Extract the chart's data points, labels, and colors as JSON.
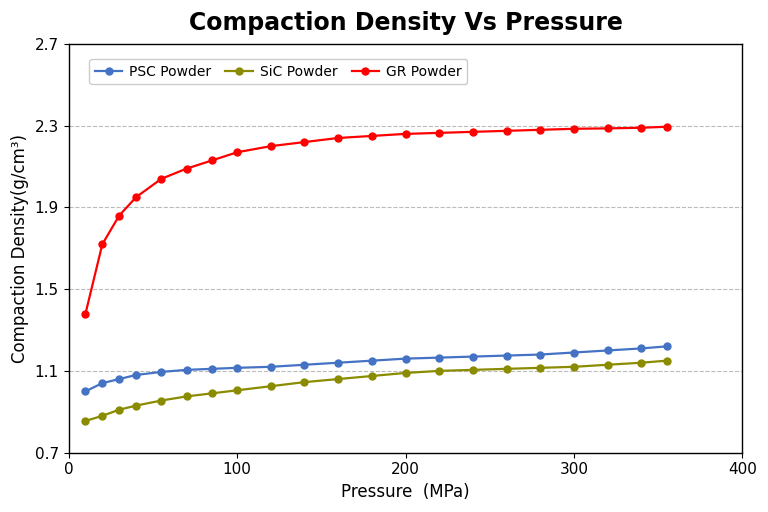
{
  "title": "Compaction Density Vs Pressure",
  "xlabel": "Pressure  (MPa)",
  "ylabel": "Compaction Density(g/cm³)",
  "xlim": [
    0,
    375
  ],
  "ylim": [
    0.7,
    2.7
  ],
  "xticks": [
    0,
    100,
    200,
    300,
    400
  ],
  "yticks": [
    0.7,
    1.1,
    1.5,
    1.9,
    2.3,
    2.7
  ],
  "grid_yticks": [
    1.1,
    1.5,
    1.9,
    2.3
  ],
  "PSC_Powder": {
    "label": "PSC Powder",
    "color": "#4472C4",
    "marker": "o",
    "x": [
      10,
      20,
      30,
      40,
      55,
      70,
      85,
      100,
      120,
      140,
      160,
      180,
      200,
      220,
      240,
      260,
      280,
      300,
      320,
      340,
      355
    ],
    "y": [
      1.0,
      1.04,
      1.06,
      1.08,
      1.095,
      1.105,
      1.11,
      1.115,
      1.12,
      1.13,
      1.14,
      1.15,
      1.16,
      1.165,
      1.17,
      1.175,
      1.18,
      1.19,
      1.2,
      1.21,
      1.22
    ]
  },
  "SiC_Powder": {
    "label": "SiC Powder",
    "color": "#8B8B00",
    "marker": "o",
    "x": [
      10,
      20,
      30,
      40,
      55,
      70,
      85,
      100,
      120,
      140,
      160,
      180,
      200,
      220,
      240,
      260,
      280,
      300,
      320,
      340,
      355
    ],
    "y": [
      0.855,
      0.88,
      0.91,
      0.93,
      0.955,
      0.975,
      0.99,
      1.005,
      1.025,
      1.045,
      1.06,
      1.075,
      1.09,
      1.1,
      1.105,
      1.11,
      1.115,
      1.12,
      1.13,
      1.14,
      1.15
    ]
  },
  "GR_Powder": {
    "label": "GR Powder",
    "color": "#FF0000",
    "marker": "o",
    "x": [
      10,
      20,
      30,
      40,
      55,
      70,
      85,
      100,
      120,
      140,
      160,
      180,
      200,
      220,
      240,
      260,
      280,
      300,
      320,
      340,
      355
    ],
    "y": [
      1.38,
      1.72,
      1.86,
      1.95,
      2.04,
      2.09,
      2.13,
      2.17,
      2.2,
      2.22,
      2.24,
      2.25,
      2.26,
      2.265,
      2.27,
      2.275,
      2.28,
      2.285,
      2.287,
      2.29,
      2.295
    ]
  },
  "background_color": "#ffffff",
  "title_fontsize": 17,
  "label_fontsize": 12,
  "tick_fontsize": 11,
  "legend_fontsize": 10,
  "linewidth": 1.6,
  "markersize": 5
}
